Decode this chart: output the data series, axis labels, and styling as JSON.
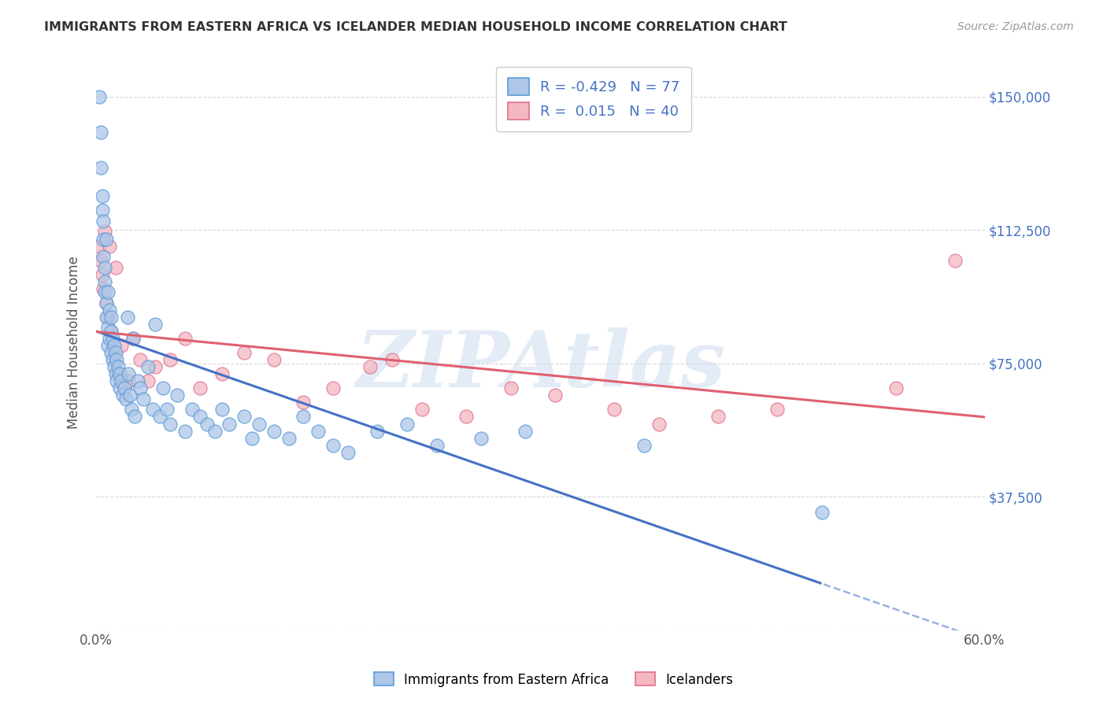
{
  "title": "IMMIGRANTS FROM EASTERN AFRICA VS ICELANDER MEDIAN HOUSEHOLD INCOME CORRELATION CHART",
  "source": "Source: ZipAtlas.com",
  "ylabel": "Median Household Income",
  "xlim": [
    0.0,
    0.6
  ],
  "ylim": [
    0,
    162000
  ],
  "yticks": [
    0,
    37500,
    75000,
    112500,
    150000
  ],
  "ytick_labels": [
    "",
    "$37,500",
    "$75,000",
    "$112,500",
    "$150,000"
  ],
  "xticks": [
    0.0,
    0.1,
    0.2,
    0.3,
    0.4,
    0.5,
    0.6
  ],
  "xtick_labels": [
    "0.0%",
    "",
    "",
    "",
    "",
    "",
    "60.0%"
  ],
  "grid_color": "#cccccc",
  "background_color": "#ffffff",
  "blue_color": "#aec6e8",
  "pink_color": "#f4b8c1",
  "blue_edge_color": "#5b9bd5",
  "pink_edge_color": "#e07090",
  "blue_line_color": "#4472c4",
  "pink_line_color": "#e06070",
  "blue_R": -0.429,
  "blue_N": 77,
  "pink_R": 0.015,
  "pink_N": 40,
  "watermark": "ZIPAtlas",
  "legend_label_blue": "Immigrants from Eastern Africa",
  "legend_label_pink": "Icelanders",
  "blue_x": [
    0.002,
    0.003,
    0.003,
    0.004,
    0.004,
    0.005,
    0.005,
    0.005,
    0.006,
    0.006,
    0.006,
    0.007,
    0.007,
    0.007,
    0.008,
    0.008,
    0.008,
    0.009,
    0.009,
    0.01,
    0.01,
    0.01,
    0.011,
    0.011,
    0.012,
    0.012,
    0.013,
    0.013,
    0.014,
    0.014,
    0.015,
    0.016,
    0.016,
    0.017,
    0.018,
    0.019,
    0.02,
    0.021,
    0.022,
    0.023,
    0.024,
    0.025,
    0.026,
    0.028,
    0.03,
    0.032,
    0.035,
    0.038,
    0.04,
    0.043,
    0.045,
    0.048,
    0.05,
    0.055,
    0.06,
    0.065,
    0.07,
    0.075,
    0.08,
    0.085,
    0.09,
    0.1,
    0.105,
    0.11,
    0.12,
    0.13,
    0.14,
    0.15,
    0.16,
    0.17,
    0.19,
    0.21,
    0.23,
    0.26,
    0.29,
    0.37,
    0.49
  ],
  "blue_y": [
    150000,
    140000,
    130000,
    122000,
    118000,
    115000,
    110000,
    105000,
    102000,
    98000,
    95000,
    92000,
    110000,
    88000,
    95000,
    85000,
    80000,
    90000,
    82000,
    88000,
    84000,
    78000,
    82000,
    76000,
    80000,
    74000,
    78000,
    72000,
    76000,
    70000,
    74000,
    72000,
    68000,
    70000,
    66000,
    68000,
    65000,
    88000,
    72000,
    66000,
    62000,
    82000,
    60000,
    70000,
    68000,
    65000,
    74000,
    62000,
    86000,
    60000,
    68000,
    62000,
    58000,
    66000,
    56000,
    62000,
    60000,
    58000,
    56000,
    62000,
    58000,
    60000,
    54000,
    58000,
    56000,
    54000,
    60000,
    56000,
    52000,
    50000,
    56000,
    58000,
    52000,
    54000,
    56000,
    52000,
    33000
  ],
  "pink_x": [
    0.002,
    0.003,
    0.004,
    0.005,
    0.006,
    0.007,
    0.008,
    0.009,
    0.01,
    0.011,
    0.012,
    0.013,
    0.015,
    0.017,
    0.019,
    0.022,
    0.025,
    0.03,
    0.035,
    0.04,
    0.05,
    0.06,
    0.07,
    0.085,
    0.1,
    0.12,
    0.14,
    0.16,
    0.185,
    0.2,
    0.22,
    0.25,
    0.28,
    0.31,
    0.35,
    0.38,
    0.42,
    0.46,
    0.54,
    0.58
  ],
  "pink_y": [
    108000,
    104000,
    100000,
    96000,
    112000,
    92000,
    88000,
    108000,
    84000,
    80000,
    76000,
    102000,
    72000,
    80000,
    68000,
    70000,
    82000,
    76000,
    70000,
    74000,
    76000,
    82000,
    68000,
    72000,
    78000,
    76000,
    64000,
    68000,
    74000,
    76000,
    62000,
    60000,
    68000,
    66000,
    62000,
    58000,
    60000,
    62000,
    68000,
    104000
  ]
}
